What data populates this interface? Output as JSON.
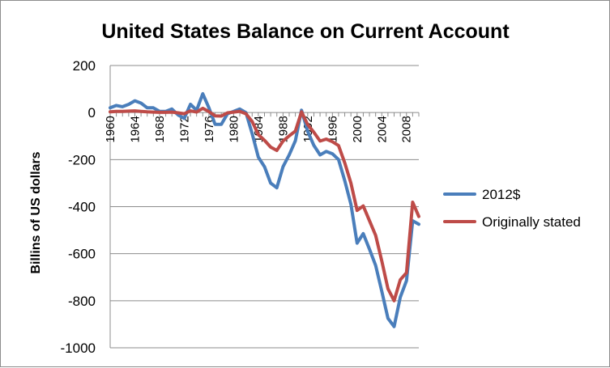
{
  "chart_data": {
    "type": "line",
    "title": "United States Balance on Current Account",
    "xlabel": "",
    "ylabel": "Billins of US dollars",
    "ylim": [
      -1000,
      200
    ],
    "yticks": [
      200,
      0,
      -200,
      -400,
      -600,
      -800,
      -1000
    ],
    "xlim": [
      1960,
      2010
    ],
    "xticks": [
      1960,
      1964,
      1968,
      1972,
      1976,
      1980,
      1984,
      1988,
      1992,
      1996,
      2000,
      2004,
      2008
    ],
    "grid": "horizontal",
    "legend_position": "right",
    "x": [
      1960,
      1961,
      1962,
      1963,
      1964,
      1965,
      1966,
      1967,
      1968,
      1969,
      1970,
      1971,
      1972,
      1973,
      1974,
      1975,
      1976,
      1977,
      1978,
      1979,
      1980,
      1981,
      1982,
      1983,
      1984,
      1985,
      1986,
      1987,
      1988,
      1989,
      1990,
      1991,
      1992,
      1993,
      1994,
      1995,
      1996,
      1997,
      1998,
      1999,
      2000,
      2001,
      2002,
      2003,
      2004,
      2005,
      2006,
      2007,
      2008,
      2009,
      2010
    ],
    "series": [
      {
        "name": "2012$",
        "color": "#4a7ebb",
        "values": [
          20,
          30,
          25,
          35,
          50,
          40,
          20,
          20,
          5,
          5,
          15,
          -10,
          -25,
          35,
          10,
          80,
          20,
          -50,
          -50,
          -5,
          5,
          15,
          0,
          -90,
          -190,
          -230,
          -300,
          -320,
          -230,
          -180,
          -120,
          10,
          -80,
          -140,
          -180,
          -165,
          -175,
          -200,
          -290,
          -390,
          -555,
          -515,
          -580,
          -650,
          -760,
          -875,
          -910,
          -785,
          -715,
          -460,
          -475
        ]
      },
      {
        "name": "Originally stated",
        "color": "#be4b48",
        "values": [
          3,
          5,
          5,
          6,
          7,
          5,
          3,
          2,
          1,
          1,
          2,
          -1,
          -5,
          7,
          2,
          18,
          4,
          -14,
          -15,
          -1,
          2,
          5,
          -5,
          -38,
          -94,
          -118,
          -147,
          -161,
          -121,
          -99,
          -79,
          3,
          -51,
          -84,
          -121,
          -113,
          -124,
          -140,
          -214,
          -300,
          -416,
          -397,
          -459,
          -522,
          -631,
          -749,
          -800,
          -711,
          -681,
          -381,
          -442
        ]
      }
    ]
  }
}
